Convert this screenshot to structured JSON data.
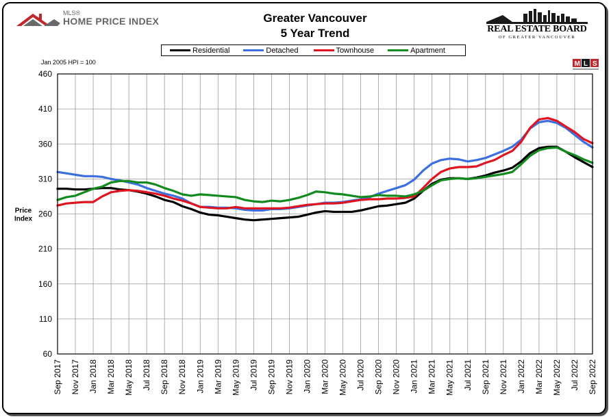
{
  "header": {
    "mls_label": "MLS®",
    "brand": "HOME PRICE INDEX",
    "title_line1": "Greater Vancouver",
    "title_line2": "5 Year Trend",
    "board_name": "REAL ESTATE BOARD",
    "board_sub": "OF GREATER VANCOUVER",
    "hpi_note": "Jan 2005 HPI = 100",
    "mls_badge": "MLS"
  },
  "colors": {
    "residential": "#000000",
    "detached": "#3b6fe0",
    "townhouse": "#e0141e",
    "apartment": "#138a1e",
    "logo_red": "#c0282c",
    "logo_gray": "#6a6a6a"
  },
  "chart_data": {
    "type": "line",
    "ylabel": "Price\nIndex",
    "ylim": [
      60,
      460
    ],
    "yticks": [
      60,
      110,
      160,
      210,
      260,
      310,
      360,
      410,
      460
    ],
    "grid": true,
    "legend_position": "top",
    "x_tick_labels": [
      "Sep 2017",
      "Nov 2017",
      "Jan 2018",
      "Mar 2018",
      "May 2018",
      "Jul 2018",
      "Sep 2018",
      "Nov 2018",
      "Jan 2019",
      "Mar 2019",
      "May 2019",
      "Jul 2019",
      "Sep 2019",
      "Nov 2019",
      "Jan 2020",
      "Mar 2020",
      "May 2020",
      "Jul 2020",
      "Sep 2020",
      "Nov 2020",
      "Jan 2021",
      "Mar 2021",
      "May 2021",
      "Jul 2021",
      "Sep 2021",
      "Nov 2021",
      "Jan 2022",
      "Mar 2022",
      "May 2022",
      "Jul 2022",
      "Sep 2022"
    ],
    "x": [
      "Sep 2017",
      "Oct 2017",
      "Nov 2017",
      "Dec 2017",
      "Jan 2018",
      "Feb 2018",
      "Mar 2018",
      "Apr 2018",
      "May 2018",
      "Jun 2018",
      "Jul 2018",
      "Aug 2018",
      "Sep 2018",
      "Oct 2018",
      "Nov 2018",
      "Dec 2018",
      "Jan 2019",
      "Feb 2019",
      "Mar 2019",
      "Apr 2019",
      "May 2019",
      "Jun 2019",
      "Jul 2019",
      "Aug 2019",
      "Sep 2019",
      "Oct 2019",
      "Nov 2019",
      "Dec 2019",
      "Jan 2020",
      "Feb 2020",
      "Mar 2020",
      "Apr 2020",
      "May 2020",
      "Jun 2020",
      "Jul 2020",
      "Aug 2020",
      "Sep 2020",
      "Oct 2020",
      "Nov 2020",
      "Dec 2020",
      "Jan 2021",
      "Feb 2021",
      "Mar 2021",
      "Apr 2021",
      "May 2021",
      "Jun 2021",
      "Jul 2021",
      "Aug 2021",
      "Sep 2021",
      "Oct 2021",
      "Nov 2021",
      "Dec 2021",
      "Jan 2022",
      "Feb 2022",
      "Mar 2022",
      "Apr 2022",
      "May 2022",
      "Jun 2022",
      "Jul 2022",
      "Aug 2022",
      "Sep 2022"
    ],
    "series": [
      {
        "name": "Residential",
        "color_key": "residential",
        "values": [
          296,
          296,
          295,
          295,
          296,
          297,
          297,
          295,
          294,
          292,
          289,
          285,
          280,
          277,
          271,
          267,
          262,
          259,
          258,
          256,
          254,
          252,
          251,
          252,
          253,
          254,
          255,
          256,
          259,
          262,
          264,
          263,
          263,
          263,
          265,
          268,
          271,
          272,
          274,
          276,
          282,
          293,
          303,
          309,
          311,
          311,
          310,
          312,
          315,
          319,
          322,
          326,
          335,
          347,
          354,
          356,
          356,
          349,
          341,
          334,
          327
        ]
      },
      {
        "name": "Detached",
        "color_key": "detached",
        "values": [
          320,
          318,
          316,
          314,
          314,
          313,
          310,
          308,
          305,
          302,
          297,
          293,
          289,
          286,
          282,
          275,
          270,
          270,
          269,
          269,
          268,
          266,
          265,
          265,
          267,
          267,
          268,
          270,
          272,
          274,
          276,
          276,
          277,
          279,
          281,
          284,
          289,
          293,
          297,
          301,
          309,
          322,
          332,
          337,
          339,
          338,
          335,
          337,
          340,
          345,
          350,
          356,
          366,
          382,
          391,
          393,
          390,
          383,
          373,
          363,
          355
        ]
      },
      {
        "name": "Townhouse",
        "color_key": "townhouse",
        "values": [
          272,
          275,
          276,
          277,
          277,
          285,
          291,
          293,
          294,
          293,
          291,
          289,
          286,
          282,
          279,
          275,
          270,
          269,
          268,
          268,
          270,
          268,
          268,
          268,
          268,
          268,
          269,
          271,
          273,
          274,
          275,
          275,
          276,
          278,
          280,
          281,
          281,
          282,
          282,
          283,
          285,
          297,
          310,
          320,
          325,
          327,
          327,
          328,
          333,
          337,
          344,
          350,
          363,
          383,
          395,
          397,
          393,
          385,
          377,
          367,
          361
        ]
      },
      {
        "name": "Apartment",
        "color_key": "apartment",
        "values": [
          280,
          284,
          286,
          291,
          296,
          299,
          305,
          307,
          307,
          305,
          305,
          302,
          297,
          293,
          288,
          286,
          288,
          287,
          286,
          285,
          284,
          280,
          278,
          277,
          279,
          278,
          280,
          283,
          287,
          292,
          291,
          289,
          288,
          286,
          284,
          285,
          287,
          286,
          286,
          285,
          288,
          293,
          301,
          308,
          310,
          311,
          310,
          311,
          313,
          315,
          317,
          320,
          331,
          343,
          351,
          354,
          355,
          349,
          344,
          338,
          333
        ]
      }
    ]
  }
}
